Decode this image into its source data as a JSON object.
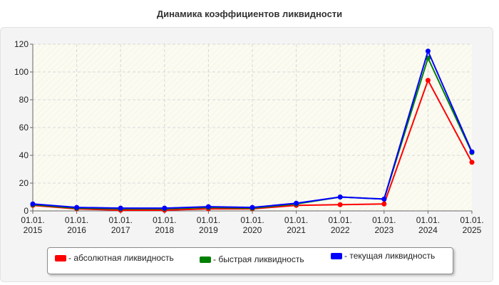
{
  "title": "Динамика коэффициентов ликвидности",
  "chart_data": {
    "type": "line",
    "x": [
      "01.01.\n2015",
      "01.01.\n2016",
      "01.01.\n2017",
      "01.01.\n2018",
      "01.01.\n2019",
      "01.01.\n2020",
      "01.01.\n2021",
      "01.01.\n2022",
      "01.01.\n2023",
      "01.01.\n2024",
      "01.01.\n2025"
    ],
    "ylim": [
      0,
      120
    ],
    "yticks": [
      0,
      20,
      40,
      60,
      80,
      100,
      120
    ],
    "grid": true,
    "legend_position": "bottom",
    "series": [
      {
        "name": "- абсолютная ликвидность",
        "color": "#ff0000",
        "values": [
          4,
          1.5,
          0.5,
          0.5,
          1.5,
          1.5,
          4,
          4.5,
          5,
          94,
          35
        ]
      },
      {
        "name": "- быстрая ликвидность",
        "color": "#008000",
        "values": [
          4.5,
          2,
          1.5,
          1.5,
          2.5,
          2,
          5,
          10,
          8.5,
          110,
          42
        ]
      },
      {
        "name": "- текущая ликвидность",
        "color": "#0000ff",
        "values": [
          5,
          2.5,
          2,
          2,
          3,
          2.5,
          5.5,
          10,
          8.5,
          115,
          42.5
        ]
      }
    ]
  }
}
